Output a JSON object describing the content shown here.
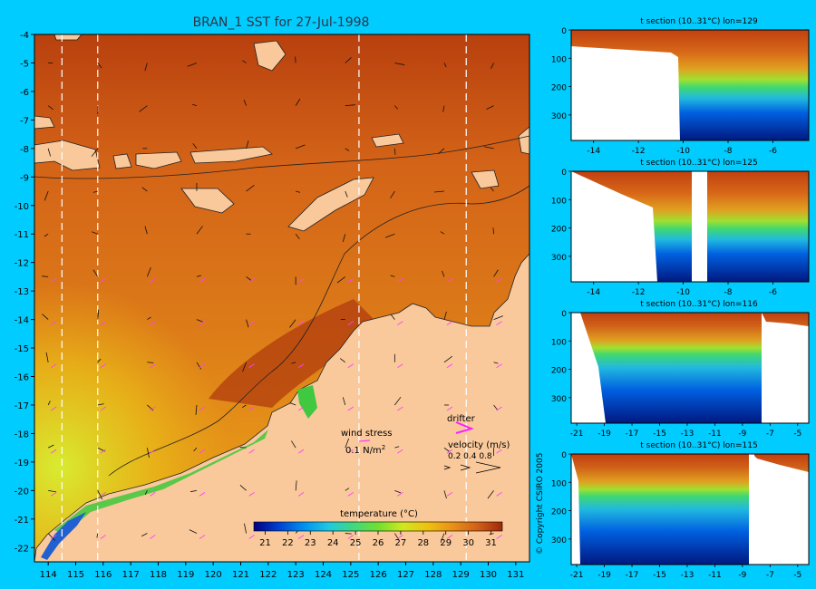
{
  "main_map": {
    "title": "BRAN_1 SST for 27-Jul-1998",
    "lat_ticks": [
      "-4",
      "-5",
      "-6",
      "-7",
      "-8",
      "-9",
      "-10",
      "-11",
      "-12",
      "-13",
      "-14",
      "-15",
      "-16",
      "-17",
      "-18",
      "-19",
      "-20",
      "-21",
      "-22"
    ],
    "lon_ticks": [
      "114",
      "115",
      "116",
      "117",
      "118",
      "119",
      "120",
      "121",
      "122",
      "123",
      "124",
      "125",
      "126",
      "127",
      "128",
      "129",
      "130",
      "131"
    ],
    "section_lines_lon": [
      114.5,
      115.8,
      125.3,
      129.2
    ],
    "wind_stress_label": "wind stress",
    "wind_stress_value": "0.1 N/m",
    "wind_stress_sup": "2",
    "drifter_label": "drifter",
    "velocity_label": "velocity (m/s)",
    "velocity_values": "0.2 0.4 0.8",
    "colorbar_title": "temperature (°C)",
    "colorbar_ticks": [
      "21",
      "22",
      "23",
      "24",
      "25",
      "26",
      "27",
      "28",
      "29",
      "30",
      "31"
    ],
    "colors": {
      "land": "#f9c99b",
      "warm": "#c0400f",
      "mid": "#e08018",
      "cool": "#d8e020",
      "green": "#50d040",
      "vector": "#ff40ff"
    }
  },
  "sections": [
    {
      "title": "t section (10..31°C) lon=129",
      "y_ticks": [
        "0",
        "100",
        "200",
        "300"
      ],
      "x_ticks": [
        "-14",
        "-12",
        "-10",
        "-8",
        "-6"
      ]
    },
    {
      "title": "t section (10..31°C) lon=125",
      "y_ticks": [
        "0",
        "100",
        "200",
        "300"
      ],
      "x_ticks": [
        "-14",
        "-12",
        "-10",
        "-8",
        "-6"
      ]
    },
    {
      "title": "t section (10..31°C) lon=116",
      "y_ticks": [
        "0",
        "100",
        "200",
        "300"
      ],
      "x_ticks": [
        "-21",
        "-19",
        "-17",
        "-15",
        "-13",
        "-11",
        "-9",
        "-7",
        "-5"
      ]
    },
    {
      "title": "t section (10..31°C) lon=115",
      "y_ticks": [
        "0",
        "100",
        "200",
        "300"
      ],
      "x_ticks": [
        "-21",
        "-19",
        "-17",
        "-15",
        "-13",
        "-11",
        "-9",
        "-7",
        "-5"
      ]
    }
  ],
  "copyright": "© Copyright CSIRO 2005"
}
